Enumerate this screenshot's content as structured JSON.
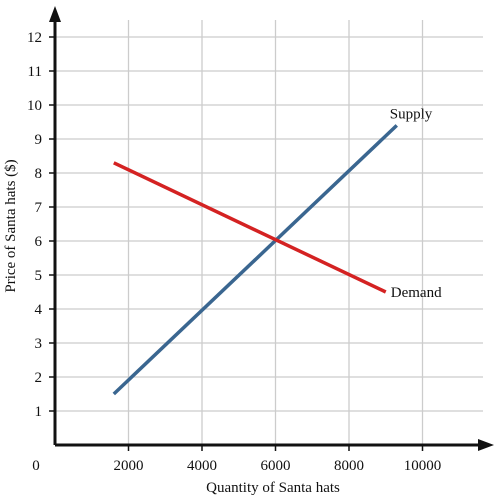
{
  "chart_data": {
    "type": "line",
    "title": "",
    "xlabel": "Quantity of Santa hats",
    "ylabel": "Price of Santa hats ($)",
    "xlim": [
      0,
      12000
    ],
    "ylim": [
      0,
      13
    ],
    "x_ticks": [
      2000,
      4000,
      6000,
      8000,
      10000
    ],
    "y_ticks": [
      1,
      2,
      3,
      4,
      5,
      6,
      7,
      8,
      9,
      10,
      11,
      12
    ],
    "x_tick_labels": [
      "2000",
      "4000",
      "6000",
      "8000",
      "10000"
    ],
    "y_tick_labels": [
      "1",
      "2",
      "3",
      "4",
      "5",
      "6",
      "7",
      "8",
      "9",
      "10",
      "11",
      "12"
    ],
    "origin_label": "0",
    "grid": true,
    "legend": "none",
    "series": [
      {
        "name": "Supply",
        "color": "#3a6690",
        "points": [
          {
            "x": 1600,
            "y": 1.5
          },
          {
            "x": 9300,
            "y": 9.4
          }
        ]
      },
      {
        "name": "Demand",
        "color": "#d42222",
        "points": [
          {
            "x": 1600,
            "y": 8.3
          },
          {
            "x": 9000,
            "y": 4.5
          }
        ]
      }
    ],
    "axis_color": "#111111",
    "grid_color": "#cccccc"
  }
}
